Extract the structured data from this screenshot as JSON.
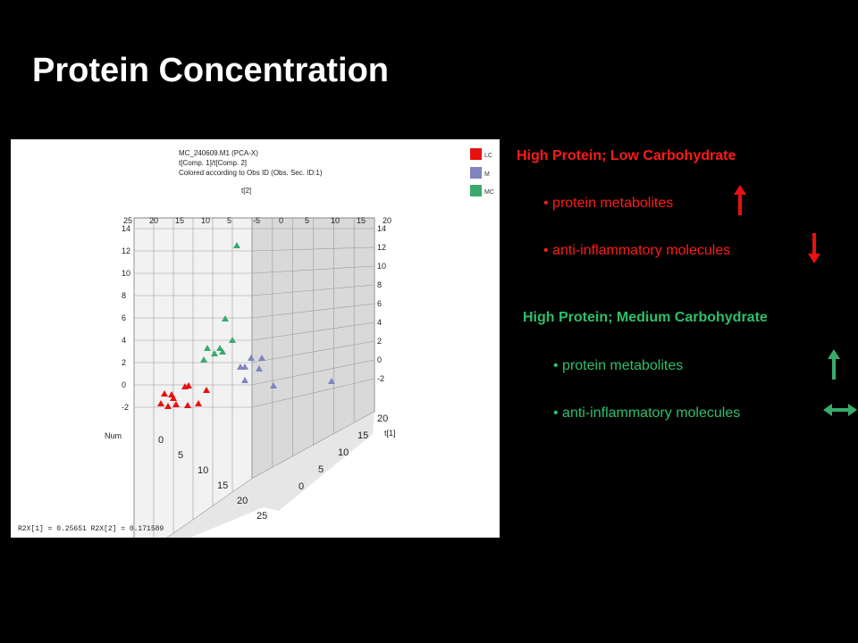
{
  "slide": {
    "title": "Protein Concentration"
  },
  "chart_data": {
    "type": "scatter",
    "title": "MC_240609.M1 (PCA-X)",
    "subtitle_lines": [
      "t[Comp. 1]/t[Comp. 2]",
      "Colored according to Obs ID (Obs. Sec. ID:1)"
    ],
    "axes": {
      "vertical_label": "t[2]",
      "right_label": "t[1]",
      "left_label": "Num",
      "vertical_ticks": [
        -2,
        0,
        2,
        4,
        6,
        8,
        10,
        12,
        14
      ],
      "top_ticks": [
        "25",
        "20",
        "15",
        "10",
        "5",
        "-5",
        "0",
        "5",
        "10",
        "15",
        "20"
      ],
      "num_ticks": [
        "0",
        "5",
        "10",
        "15",
        "20",
        "25"
      ],
      "t1_ticks": [
        "0",
        "5",
        "10",
        "15",
        "20"
      ]
    },
    "legend": {
      "placement": "top-right",
      "entries": [
        {
          "label": "LC",
          "color": "#e81010"
        },
        {
          "label": "M",
          "color": "#7f84c0"
        },
        {
          "label": "MC",
          "color": "#3aaa6c"
        }
      ]
    },
    "footer": "R2X[1] = 0.25651   R2X[2] = 0.171589",
    "series": [
      {
        "name": "LC",
        "color": "#e81010",
        "points_xy": [
          [
            184,
            441
          ],
          [
            192,
            442
          ],
          [
            207,
            433
          ],
          [
            211,
            432
          ],
          [
            231,
            437
          ],
          [
            180,
            452
          ],
          [
            194,
            446
          ],
          [
            188,
            455
          ],
          [
            197,
            453
          ],
          [
            210,
            454
          ],
          [
            222,
            452
          ]
        ]
      },
      {
        "name": "M",
        "color": "#7f84c0",
        "points_xy": [
          [
            269,
            411
          ],
          [
            274,
            411
          ],
          [
            281,
            401
          ],
          [
            293,
            401
          ],
          [
            290,
            413
          ],
          [
            274,
            426
          ],
          [
            306,
            432
          ],
          [
            371,
            427
          ]
        ]
      },
      {
        "name": "MC",
        "color": "#3aaa6c",
        "points_xy": [
          [
            265,
            275
          ],
          [
            252,
            357
          ],
          [
            260,
            381
          ],
          [
            232,
            390
          ],
          [
            246,
            390
          ],
          [
            249,
            394
          ],
          [
            240,
            396
          ],
          [
            228,
            403
          ]
        ]
      }
    ]
  },
  "groups": [
    {
      "heading": "High Protein; Low Carbohydrate",
      "color": "#ff1a1a",
      "items": [
        {
          "label": "protein metabolites",
          "direction": "up"
        },
        {
          "label": "anti-inflammatory molecules",
          "direction": "down"
        }
      ]
    },
    {
      "heading": "High Protein; Medium Carbohydrate",
      "color": "#2ebf6b",
      "items": [
        {
          "label": "protein metabolites",
          "direction": "up"
        },
        {
          "label": "anti-inflammatory molecules",
          "direction": "both"
        }
      ]
    }
  ]
}
